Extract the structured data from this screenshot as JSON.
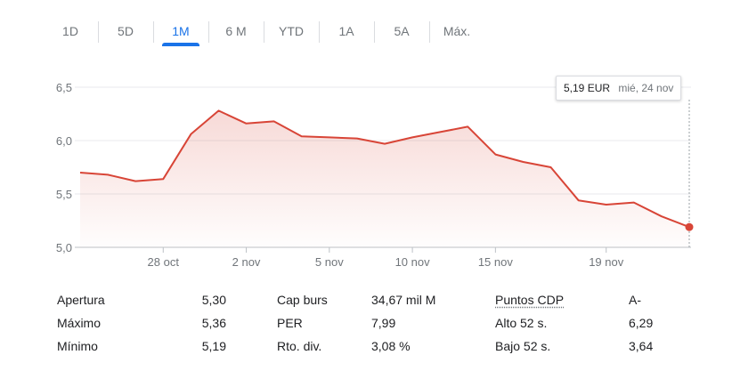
{
  "tabs": [
    {
      "label": "1D",
      "active": false
    },
    {
      "label": "5D",
      "active": false
    },
    {
      "label": "1M",
      "active": true
    },
    {
      "label": "6 M",
      "active": false
    },
    {
      "label": "YTD",
      "active": false
    },
    {
      "label": "1A",
      "active": false
    },
    {
      "label": "5A",
      "active": false
    },
    {
      "label": "Máx.",
      "active": false
    }
  ],
  "tooltip": {
    "price": "5,19 EUR",
    "date": "mié, 24 nov"
  },
  "colors": {
    "line": "#d84537",
    "accent": "#1a73e8",
    "grid": "#e8eaed",
    "axis": "#70757a"
  },
  "chart_data": {
    "type": "area",
    "x": [
      "2021-10-25",
      "2021-10-26",
      "2021-10-27",
      "2021-10-28",
      "2021-10-29",
      "2021-11-01",
      "2021-11-02",
      "2021-11-03",
      "2021-11-04",
      "2021-11-05",
      "2021-11-08",
      "2021-11-09",
      "2021-11-10",
      "2021-11-11",
      "2021-11-12",
      "2021-11-15",
      "2021-11-16",
      "2021-11-17",
      "2021-11-18",
      "2021-11-19",
      "2021-11-22",
      "2021-11-23",
      "2021-11-24"
    ],
    "series": [
      {
        "values": [
          5.7,
          5.68,
          5.62,
          5.64,
          6.06,
          6.28,
          6.16,
          6.18,
          6.04,
          6.03,
          6.02,
          5.97,
          6.03,
          6.08,
          6.13,
          5.87,
          5.8,
          5.75,
          5.44,
          5.4,
          5.42,
          5.29,
          5.19
        ]
      }
    ],
    "ylim": [
      5.0,
      6.5
    ],
    "yticks": [
      "6,5",
      "6,0",
      "5,5",
      "5,0"
    ],
    "xticks": [
      {
        "date": "2021-10-28",
        "label": "28 oct"
      },
      {
        "date": "2021-11-02",
        "label": "2 nov"
      },
      {
        "date": "2021-11-05",
        "label": "5 nov"
      },
      {
        "date": "2021-11-10",
        "label": "10 nov"
      },
      {
        "date": "2021-11-15",
        "label": "15 nov"
      },
      {
        "date": "2021-11-19",
        "label": "19 nov"
      }
    ],
    "grid": true
  },
  "stats": [
    {
      "label": "Apertura",
      "value": "5,30"
    },
    {
      "label": "Máximo",
      "value": "5,36"
    },
    {
      "label": "Mínimo",
      "value": "5,19"
    },
    {
      "label": "Cap burs",
      "value": "34,67 mil M"
    },
    {
      "label": "PER",
      "value": "7,99"
    },
    {
      "label": "Rto. div.",
      "value": "3,08 %"
    },
    {
      "label": "Puntos CDP",
      "value": "A-"
    },
    {
      "label": "Alto 52 s.",
      "value": "6,29"
    },
    {
      "label": "Bajo 52 s.",
      "value": "3,64"
    }
  ]
}
